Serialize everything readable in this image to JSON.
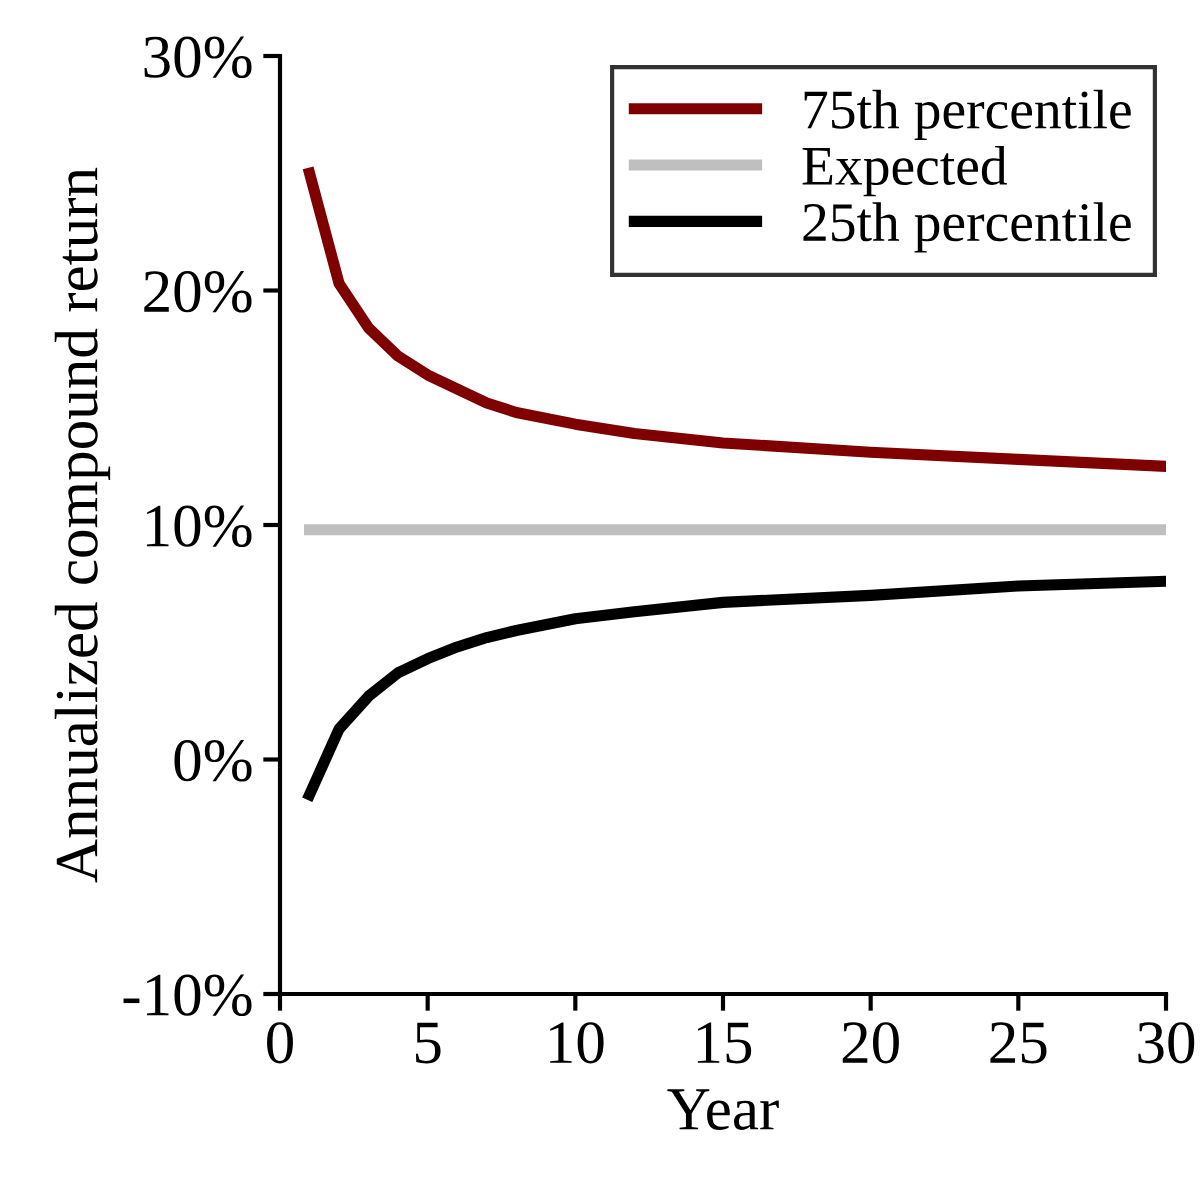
{
  "chart_data": {
    "type": "line",
    "xlabel": "Year",
    "ylabel": "Annualized compound return",
    "x": [
      1,
      2,
      3,
      4,
      5,
      6,
      7,
      8,
      10,
      12,
      15,
      20,
      25,
      30
    ],
    "series": [
      {
        "name": "75th percentile",
        "color": "#7f0000",
        "values": [
          25.0,
          20.3,
          18.4,
          17.2,
          16.4,
          15.8,
          15.2,
          14.8,
          14.3,
          13.9,
          13.5,
          13.1,
          12.8,
          12.5
        ]
      },
      {
        "name": "Expected",
        "color": "#bfbfbf",
        "values": [
          9.8,
          9.8,
          9.8,
          9.8,
          9.8,
          9.8,
          9.8,
          9.8,
          9.8,
          9.8,
          9.8,
          9.8,
          9.8,
          9.8
        ]
      },
      {
        "name": "25th percentile",
        "color": "#000000",
        "values": [
          -1.5,
          1.3,
          2.7,
          3.7,
          4.3,
          4.8,
          5.2,
          5.5,
          6.0,
          6.3,
          6.7,
          7.0,
          7.4,
          7.6
        ]
      }
    ],
    "xlim": [
      0,
      30
    ],
    "xticks": [
      0,
      5,
      10,
      15,
      20,
      25,
      30
    ],
    "ylim": [
      -10,
      30
    ],
    "yticks": [
      {
        "value": -10,
        "label": "-10%"
      },
      {
        "value": 0,
        "label": "0%"
      },
      {
        "value": 10,
        "label": "10%"
      },
      {
        "value": 20,
        "label": "20%"
      },
      {
        "value": 30,
        "label": "30%"
      }
    ],
    "grid": false,
    "legend": "top right",
    "marker": "none",
    "line_style": "solid"
  }
}
